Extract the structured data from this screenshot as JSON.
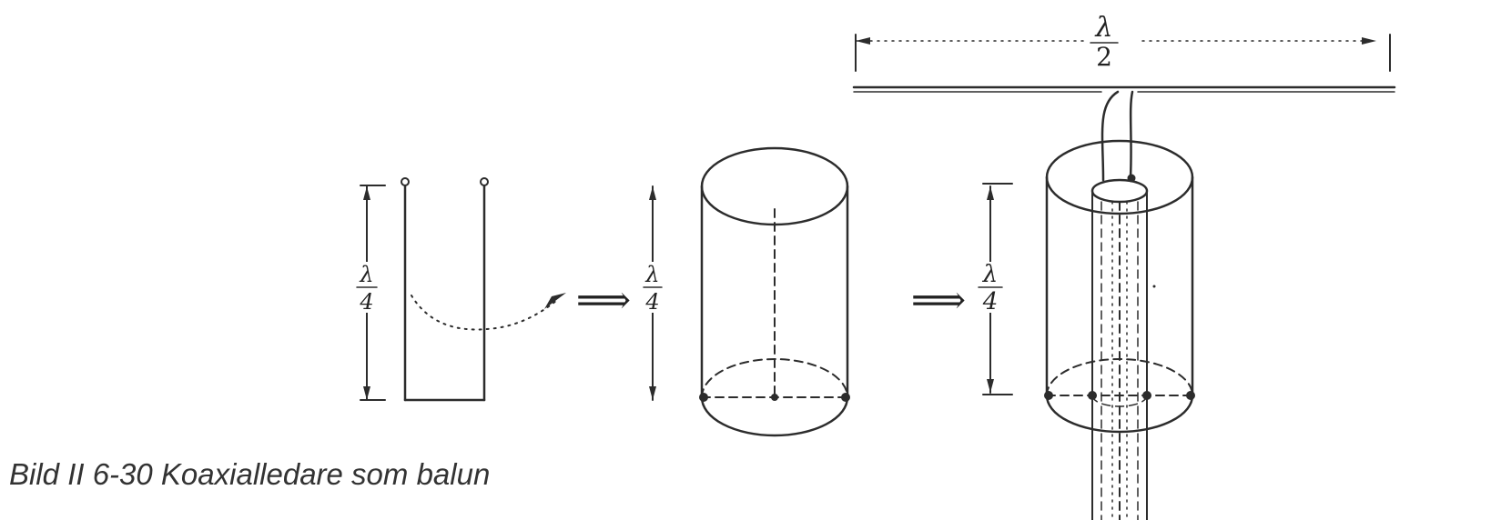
{
  "labels": {
    "lambda": "λ",
    "two": "2",
    "four": "4"
  },
  "caption": "Bild II 6-30  Koaxialledare som balun",
  "colors": {
    "ink": "#2c2c2c",
    "paper": "#ffffff"
  }
}
